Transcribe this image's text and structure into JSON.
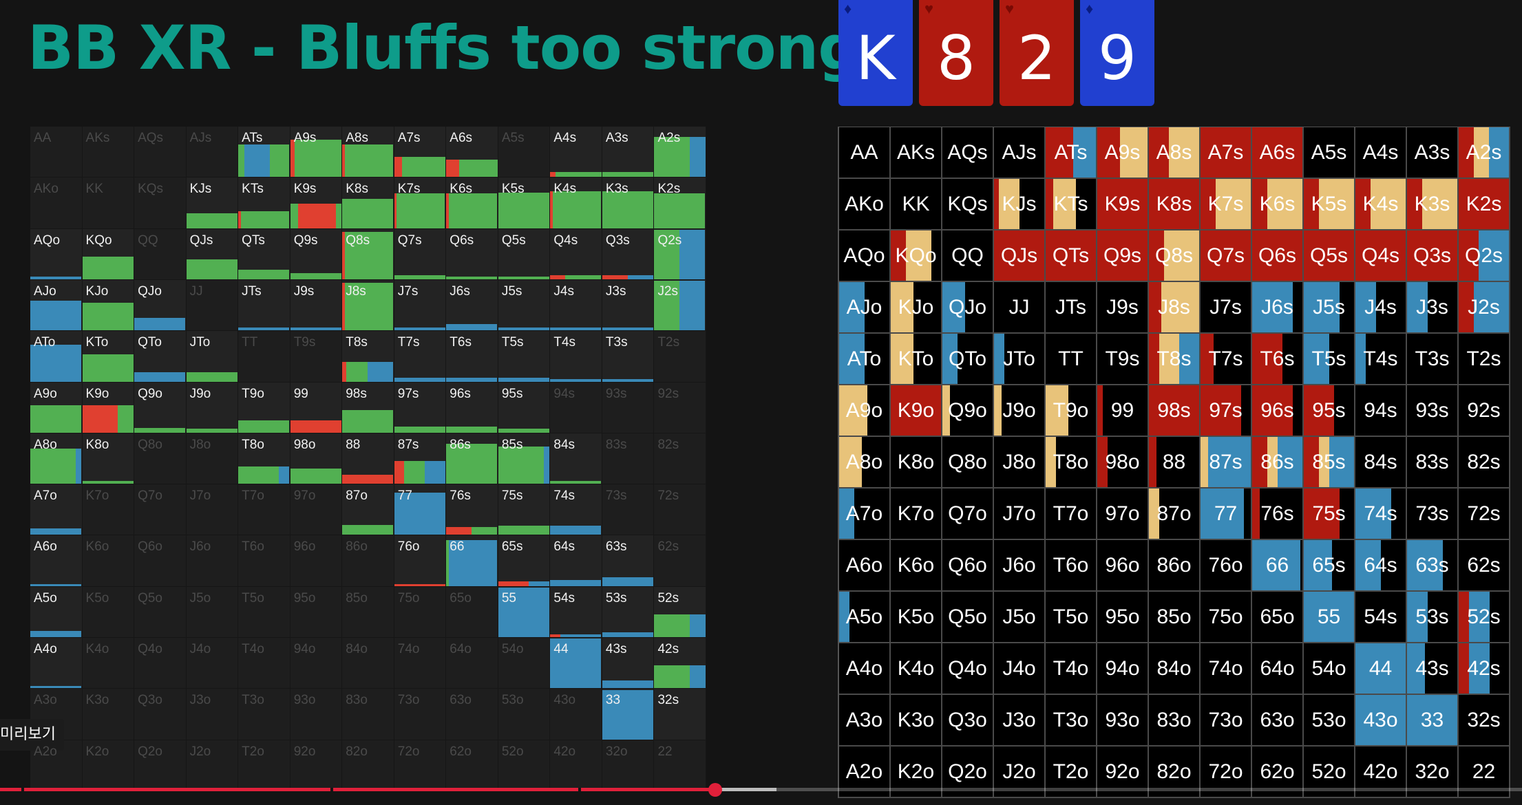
{
  "title": "BB XR - Bluffs too strong",
  "board": [
    {
      "rank": "K",
      "suit": "diamonds",
      "color": "#2140d0"
    },
    {
      "rank": "8",
      "suit": "hearts",
      "color": "#b01a10"
    },
    {
      "rank": "2",
      "suit": "hearts",
      "color": "#b01a10"
    },
    {
      "rank": "9",
      "suit": "diamonds",
      "color": "#2140d0"
    }
  ],
  "colors": {
    "green": "#52b052",
    "red": "#e04030",
    "blue": "#3a8ab8",
    "gold": "#e8c37a",
    "dark_red": "#b01a10",
    "right_blue": "#3a8ab8"
  },
  "hands": [
    [
      "AA",
      "AKs",
      "AQs",
      "AJs",
      "ATs",
      "A9s",
      "A8s",
      "A7s",
      "A6s",
      "A5s",
      "A4s",
      "A3s",
      "A2s"
    ],
    [
      "AKo",
      "KK",
      "KQs",
      "KJs",
      "KTs",
      "K9s",
      "K8s",
      "K7s",
      "K6s",
      "K5s",
      "K4s",
      "K3s",
      "K2s"
    ],
    [
      "AQo",
      "KQo",
      "QQ",
      "QJs",
      "QTs",
      "Q9s",
      "Q8s",
      "Q7s",
      "Q6s",
      "Q5s",
      "Q4s",
      "Q3s",
      "Q2s"
    ],
    [
      "AJo",
      "KJo",
      "QJo",
      "JJ",
      "JTs",
      "J9s",
      "J8s",
      "J7s",
      "J6s",
      "J5s",
      "J4s",
      "J3s",
      "J2s"
    ],
    [
      "ATo",
      "KTo",
      "QTo",
      "JTo",
      "TT",
      "T9s",
      "T8s",
      "T7s",
      "T6s",
      "T5s",
      "T4s",
      "T3s",
      "T2s"
    ],
    [
      "A9o",
      "K9o",
      "Q9o",
      "J9o",
      "T9o",
      "99",
      "98s",
      "97s",
      "96s",
      "95s",
      "94s",
      "93s",
      "92s"
    ],
    [
      "A8o",
      "K8o",
      "Q8o",
      "J8o",
      "T8o",
      "98o",
      "88",
      "87s",
      "86s",
      "85s",
      "84s",
      "83s",
      "82s"
    ],
    [
      "A7o",
      "K7o",
      "Q7o",
      "J7o",
      "T7o",
      "97o",
      "87o",
      "77",
      "76s",
      "75s",
      "74s",
      "73s",
      "72s"
    ],
    [
      "A6o",
      "K6o",
      "Q6o",
      "J6o",
      "T6o",
      "96o",
      "86o",
      "76o",
      "66",
      "65s",
      "64s",
      "63s",
      "62s"
    ],
    [
      "A5o",
      "K5o",
      "Q5o",
      "J5o",
      "T5o",
      "95o",
      "85o",
      "75o",
      "65o",
      "55",
      "54s",
      "53s",
      "52s"
    ],
    [
      "A4o",
      "K4o",
      "Q4o",
      "J4o",
      "T4o",
      "94o",
      "84o",
      "74o",
      "64o",
      "54o",
      "44",
      "43s",
      "42s"
    ],
    [
      "A3o",
      "K3o",
      "Q3o",
      "J3o",
      "T3o",
      "93o",
      "83o",
      "73o",
      "63o",
      "53o",
      "43o",
      "33",
      "32s"
    ],
    [
      "A2o",
      "K2o",
      "Q2o",
      "J2o",
      "T2o",
      "92o",
      "82o",
      "72o",
      "62o",
      "52o",
      "42o",
      "32o",
      "22"
    ]
  ],
  "left_dim": [
    "AA",
    "AKs",
    "AQs",
    "AJs",
    "A5s",
    "AKo",
    "KK",
    "KQs",
    "QQ",
    "JJ",
    "TT",
    "T9s",
    "T2s",
    "94s",
    "93s",
    "92s",
    "Q8o",
    "J8o",
    "83s",
    "82s",
    "K7o",
    "Q7o",
    "J7o",
    "T7o",
    "97o",
    "73s",
    "72s",
    "K6o",
    "Q6o",
    "J6o",
    "T6o",
    "96o",
    "86o",
    "62s",
    "K5o",
    "Q5o",
    "J5o",
    "T5o",
    "95o",
    "85o",
    "75o",
    "65o",
    "K4o",
    "Q4o",
    "J4o",
    "T4o",
    "94o",
    "84o",
    "74o",
    "64o",
    "54o",
    "A3o",
    "K3o",
    "Q3o",
    "J3o",
    "T3o",
    "93o",
    "83o",
    "73o",
    "63o",
    "53o",
    "43o",
    "A2o",
    "K2o",
    "Q2o",
    "J2o",
    "T2o",
    "92o",
    "82o",
    "72o",
    "62o",
    "52o",
    "42o",
    "32o",
    "22"
  ],
  "left_bars": {
    "ATs": [
      [
        "green",
        0.12
      ],
      [
        "blue",
        0.5
      ],
      [
        "green",
        0.38
      ]
    ],
    "A9s": [
      [
        "red",
        0.08
      ],
      [
        "green",
        0.92
      ]
    ],
    "A8s": [
      [
        "red",
        0.05
      ],
      [
        "green",
        0.95
      ]
    ],
    "A7s": [
      [
        "red",
        0.15
      ],
      [
        "green",
        0.85
      ]
    ],
    "A6s": [
      [
        "red",
        0.25
      ],
      [
        "green",
        0.75
      ]
    ],
    "A4s": [
      [
        "red",
        0.1
      ],
      [
        "green",
        0.9
      ]
    ],
    "A3s": [
      [
        "green",
        1.0
      ]
    ],
    "A2s": [
      [
        "green",
        0.7
      ],
      [
        "blue",
        0.3
      ]
    ],
    "KJs": [
      [
        "green",
        1.0
      ]
    ],
    "KTs": [
      [
        "red",
        0.05
      ],
      [
        "green",
        0.95
      ]
    ],
    "K9s": [
      [
        "green",
        0.15
      ],
      [
        "red",
        0.75
      ],
      [
        "green",
        0.1
      ]
    ],
    "K8s": [
      [
        "green",
        1.0
      ]
    ],
    "K7s": [
      [
        "red",
        0.05
      ],
      [
        "green",
        0.95
      ]
    ],
    "K6s": [
      [
        "red",
        0.05
      ],
      [
        "green",
        0.95
      ]
    ],
    "K5s": [
      [
        "green",
        1.0
      ]
    ],
    "K4s": [
      [
        "red",
        0.05
      ],
      [
        "green",
        0.95
      ]
    ],
    "K3s": [
      [
        "green",
        1.0
      ]
    ],
    "K2s": [
      [
        "green",
        1.0
      ]
    ],
    "AQo": [
      [
        "blue",
        1.0
      ]
    ],
    "KQo": [
      [
        "green",
        1.0
      ]
    ],
    "QJs": [
      [
        "green",
        1.0
      ]
    ],
    "QTs": [
      [
        "green",
        1.0
      ]
    ],
    "Q9s": [
      [
        "green",
        1.0
      ]
    ],
    "Q8s": [
      [
        "red",
        0.05
      ],
      [
        "green",
        0.95
      ]
    ],
    "Q7s": [
      [
        "green",
        1.0
      ]
    ],
    "Q6s": [
      [
        "green",
        1.0
      ]
    ],
    "Q5s": [
      [
        "green",
        1.0
      ]
    ],
    "Q4s": [
      [
        "red",
        0.3
      ],
      [
        "green",
        0.7
      ]
    ],
    "Q3s": [
      [
        "red",
        0.5
      ],
      [
        "blue",
        0.5
      ]
    ],
    "Q2s": [
      [
        "green",
        0.5
      ],
      [
        "blue",
        0.5
      ]
    ],
    "AJo": [
      [
        "blue",
        1.0
      ]
    ],
    "KJo": [
      [
        "green",
        1.0
      ]
    ],
    "QJo": [
      [
        "blue",
        1.0
      ]
    ],
    "JTs": [
      [
        "blue",
        1.0
      ]
    ],
    "J9s": [
      [
        "blue",
        1.0
      ]
    ],
    "J8s": [
      [
        "red",
        0.05
      ],
      [
        "green",
        0.95
      ]
    ],
    "J7s": [
      [
        "blue",
        1.0
      ]
    ],
    "J6s": [
      [
        "blue",
        1.0
      ]
    ],
    "J5s": [
      [
        "blue",
        1.0
      ]
    ],
    "J4s": [
      [
        "blue",
        1.0
      ]
    ],
    "J3s": [
      [
        "blue",
        1.0
      ]
    ],
    "J2s": [
      [
        "green",
        0.5
      ],
      [
        "blue",
        0.5
      ]
    ],
    "ATo": [
      [
        "blue",
        1.0
      ]
    ],
    "KTo": [
      [
        "green",
        1.0
      ]
    ],
    "QTo": [
      [
        "blue",
        1.0
      ]
    ],
    "JTo": [
      [
        "green",
        1.0
      ]
    ],
    "T8s": [
      [
        "red",
        0.08
      ],
      [
        "green",
        0.42
      ],
      [
        "blue",
        0.5
      ]
    ],
    "T7s": [
      [
        "blue",
        1.0
      ]
    ],
    "T6s": [
      [
        "blue",
        1.0
      ]
    ],
    "T5s": [
      [
        "blue",
        1.0
      ]
    ],
    "T4s": [
      [
        "blue",
        1.0
      ]
    ],
    "T3s": [
      [
        "blue",
        1.0
      ]
    ],
    "A9o": [
      [
        "green",
        1.0
      ]
    ],
    "K9o": [
      [
        "red",
        0.7
      ],
      [
        "green",
        0.3
      ]
    ],
    "Q9o": [
      [
        "green",
        1.0
      ]
    ],
    "J9o": [
      [
        "green",
        1.0
      ]
    ],
    "T9o": [
      [
        "green",
        1.0
      ]
    ],
    "99": [
      [
        "red",
        1.0
      ]
    ],
    "98s": [
      [
        "green",
        1.0
      ]
    ],
    "97s": [
      [
        "green",
        1.0
      ]
    ],
    "96s": [
      [
        "green",
        1.0
      ]
    ],
    "95s": [
      [
        "green",
        1.0
      ]
    ],
    "A8o": [
      [
        "green",
        0.9
      ],
      [
        "blue",
        0.1
      ]
    ],
    "K8o": [
      [
        "green",
        1.0
      ]
    ],
    "T8o": [
      [
        "green",
        0.8
      ],
      [
        "blue",
        0.2
      ]
    ],
    "98o": [
      [
        "green",
        1.0
      ]
    ],
    "88": [
      [
        "red",
        1.0
      ]
    ],
    "87s": [
      [
        "red",
        0.2
      ],
      [
        "green",
        0.4
      ],
      [
        "blue",
        0.4
      ]
    ],
    "86s": [
      [
        "green",
        1.0
      ]
    ],
    "85s": [
      [
        "green",
        0.9
      ],
      [
        "blue",
        0.1
      ]
    ],
    "84s": [
      [
        "green",
        1.0
      ]
    ],
    "A7o": [
      [
        "blue",
        1.0
      ]
    ],
    "87o": [
      [
        "green",
        1.0
      ]
    ],
    "77": [
      [
        "blue",
        1.0
      ]
    ],
    "76s": [
      [
        "red",
        0.5
      ],
      [
        "green",
        0.5
      ]
    ],
    "75s": [
      [
        "green",
        1.0
      ]
    ],
    "74s": [
      [
        "blue",
        1.0
      ]
    ],
    "A6o": [
      [
        "blue",
        1.0
      ]
    ],
    "76o": [
      [
        "red",
        1.0
      ]
    ],
    "66": [
      [
        "green",
        0.05
      ],
      [
        "blue",
        0.95
      ]
    ],
    "65s": [
      [
        "red",
        0.6
      ],
      [
        "blue",
        0.4
      ]
    ],
    "64s": [
      [
        "blue",
        1.0
      ]
    ],
    "63s": [
      [
        "blue",
        1.0
      ]
    ],
    "A5o": [
      [
        "blue",
        1.0
      ]
    ],
    "55": [
      [
        "blue",
        1.0
      ]
    ],
    "54s": [
      [
        "red",
        0.2
      ],
      [
        "blue",
        0.8
      ]
    ],
    "53s": [
      [
        "blue",
        1.0
      ]
    ],
    "52s": [
      [
        "green",
        0.7
      ],
      [
        "blue",
        0.3
      ]
    ],
    "A4o": [
      [
        "blue",
        1.0
      ]
    ],
    "44": [
      [
        "blue",
        1.0
      ]
    ],
    "43s": [
      [
        "blue",
        1.0
      ]
    ],
    "42s": [
      [
        "green",
        0.7
      ],
      [
        "blue",
        0.3
      ]
    ],
    "33": [
      [
        "blue",
        1.0
      ]
    ]
  },
  "left_freq": {
    "ATs": 0.65,
    "A9s": 0.75,
    "A8s": 0.65,
    "A7s": 0.4,
    "A6s": 0.35,
    "A4s": 0.1,
    "A3s": 0.1,
    "A2s": 0.8,
    "KJs": 0.3,
    "KTs": 0.35,
    "K9s": 0.5,
    "K8s": 0.6,
    "K7s": 0.7,
    "K6s": 0.7,
    "K5s": 0.72,
    "K4s": 0.75,
    "K3s": 0.75,
    "K2s": 0.7,
    "AQo": 0.05,
    "KQo": 0.45,
    "QJs": 0.4,
    "QTs": 0.2,
    "Q9s": 0.12,
    "Q8s": 0.95,
    "Q7s": 0.08,
    "Q6s": 0.05,
    "Q5s": 0.05,
    "Q4s": 0.08,
    "Q3s": 0.08,
    "Q2s": 1.0,
    "AJo": 0.6,
    "KJo": 0.55,
    "QJo": 0.25,
    "JTs": 0.05,
    "J9s": 0.05,
    "J8s": 0.95,
    "J7s": 0.06,
    "J6s": 0.12,
    "J5s": 0.06,
    "J4s": 0.06,
    "J3s": 0.06,
    "J2s": 1.0,
    "ATo": 0.75,
    "KTo": 0.55,
    "QTo": 0.2,
    "JTo": 0.2,
    "T8s": 0.4,
    "T7s": 0.08,
    "T6s": 0.08,
    "T5s": 0.08,
    "T4s": 0.06,
    "T3s": 0.06,
    "A9o": 0.55,
    "K9o": 0.55,
    "Q9o": 0.1,
    "J9o": 0.08,
    "T9o": 0.25,
    "99": 0.25,
    "98s": 0.45,
    "97s": 0.12,
    "96s": 0.12,
    "95s": 0.08,
    "A8o": 0.7,
    "K8o": 0.05,
    "T8o": 0.35,
    "98o": 0.3,
    "88": 0.18,
    "87s": 0.45,
    "86s": 0.8,
    "85s": 0.75,
    "84s": 0.05,
    "A7o": 0.12,
    "87o": 0.2,
    "77": 0.85,
    "76s": 0.15,
    "75s": 0.18,
    "74s": 0.18,
    "A6o": 0.04,
    "76o": 0.04,
    "66": 0.92,
    "65s": 0.1,
    "64s": 0.12,
    "63s": 0.18,
    "A5o": 0.12,
    "55": 1.0,
    "54s": 0.05,
    "53s": 0.1,
    "52s": 0.45,
    "A4o": 0.03,
    "44": 1.0,
    "43s": 0.15,
    "42s": 0.45,
    "33": 1.0
  },
  "right_cells": {
    "ATs": [
      [
        "dark_red",
        0.55
      ],
      [
        "right_blue",
        0.45
      ]
    ],
    "A9s": [
      [
        "dark_red",
        0.45
      ],
      [
        "gold",
        0.55
      ]
    ],
    "A8s": [
      [
        "dark_red",
        0.4
      ],
      [
        "gold",
        0.6
      ]
    ],
    "A7s": [
      [
        "dark_red",
        1.0
      ]
    ],
    "A6s": [
      [
        "dark_red",
        1.0
      ]
    ],
    "A2s": [
      [
        "dark_red",
        0.3
      ],
      [
        "gold",
        0.3
      ],
      [
        "right_blue",
        0.4
      ]
    ],
    "KJs": [
      [
        "dark_red",
        0.1
      ],
      [
        "gold",
        0.4
      ]
    ],
    "KTs": [
      [
        "dark_red",
        0.15
      ],
      [
        "gold",
        0.45
      ]
    ],
    "K9s": [
      [
        "dark_red",
        1.0
      ]
    ],
    "K8s": [
      [
        "dark_red",
        1.0
      ]
    ],
    "K7s": [
      [
        "dark_red",
        0.3
      ],
      [
        "gold",
        0.7
      ]
    ],
    "K6s": [
      [
        "dark_red",
        0.3
      ],
      [
        "gold",
        0.7
      ]
    ],
    "K5s": [
      [
        "dark_red",
        0.3
      ],
      [
        "gold",
        0.7
      ]
    ],
    "K4s": [
      [
        "dark_red",
        0.3
      ],
      [
        "gold",
        0.7
      ]
    ],
    "K3s": [
      [
        "dark_red",
        0.3
      ],
      [
        "gold",
        0.7
      ]
    ],
    "K2s": [
      [
        "dark_red",
        1.0
      ]
    ],
    "KQo": [
      [
        "dark_red",
        0.3
      ],
      [
        "gold",
        0.5
      ]
    ],
    "QJs": [
      [
        "dark_red",
        1.0
      ]
    ],
    "QTs": [
      [
        "dark_red",
        1.0
      ]
    ],
    "Q9s": [
      [
        "dark_red",
        1.0
      ]
    ],
    "Q8s": [
      [
        "dark_red",
        0.3
      ],
      [
        "gold",
        0.7
      ]
    ],
    "Q7s": [
      [
        "dark_red",
        1.0
      ]
    ],
    "Q6s": [
      [
        "dark_red",
        1.0
      ]
    ],
    "Q5s": [
      [
        "dark_red",
        1.0
      ]
    ],
    "Q4s": [
      [
        "dark_red",
        1.0
      ]
    ],
    "Q3s": [
      [
        "dark_red",
        1.0
      ]
    ],
    "Q2s": [
      [
        "dark_red",
        0.4
      ],
      [
        "right_blue",
        0.6
      ]
    ],
    "AJo": [
      [
        "right_blue",
        0.5
      ]
    ],
    "KJo": [
      [
        "gold",
        0.45
      ]
    ],
    "QJo": [
      [
        "right_blue",
        0.45
      ]
    ],
    "J8s": [
      [
        "dark_red",
        0.25
      ],
      [
        "gold",
        0.75
      ]
    ],
    "J6s": [
      [
        "right_blue",
        0.8
      ]
    ],
    "J5s": [
      [
        "right_blue",
        0.7
      ]
    ],
    "J4s": [
      [
        "right_blue",
        0.4
      ]
    ],
    "J3s": [
      [
        "right_blue",
        0.4
      ]
    ],
    "J2s": [
      [
        "dark_red",
        0.3
      ],
      [
        "right_blue",
        0.7
      ]
    ],
    "ATo": [
      [
        "right_blue",
        0.5
      ]
    ],
    "KTo": [
      [
        "gold",
        0.45
      ]
    ],
    "QTo": [
      [
        "right_blue",
        0.3
      ]
    ],
    "JTo": [
      [
        "right_blue",
        0.2
      ]
    ],
    "T8s": [
      [
        "dark_red",
        0.2
      ],
      [
        "gold",
        0.4
      ],
      [
        "right_blue",
        0.4
      ]
    ],
    "T7s": [
      [
        "dark_red",
        0.25
      ]
    ],
    "T6s": [
      [
        "dark_red",
        0.6
      ]
    ],
    "T5s": [
      [
        "right_blue",
        0.5
      ]
    ],
    "T4s": [
      [
        "right_blue",
        0.2
      ]
    ],
    "A9o": [
      [
        "gold",
        0.55
      ]
    ],
    "K9o": [
      [
        "dark_red",
        1.0
      ]
    ],
    "Q9o": [
      [
        "gold",
        0.15
      ]
    ],
    "J9o": [
      [
        "gold",
        0.15
      ]
    ],
    "T9o": [
      [
        "gold",
        0.45
      ]
    ],
    "99": [
      [
        "dark_red",
        0.1
      ]
    ],
    "98s": [
      [
        "dark_red",
        1.0
      ]
    ],
    "97s": [
      [
        "dark_red",
        0.8
      ]
    ],
    "96s": [
      [
        "dark_red",
        0.8
      ]
    ],
    "95s": [
      [
        "dark_red",
        0.6
      ]
    ],
    "A8o": [
      [
        "gold",
        0.45
      ]
    ],
    "T8o": [
      [
        "gold",
        0.2
      ]
    ],
    "98o": [
      [
        "dark_red",
        0.2
      ]
    ],
    "88": [
      [
        "dark_red",
        0.15
      ]
    ],
    "87s": [
      [
        "gold",
        0.15
      ],
      [
        "right_blue",
        0.85
      ]
    ],
    "86s": [
      [
        "dark_red",
        0.3
      ],
      [
        "gold",
        0.2
      ],
      [
        "right_blue",
        0.5
      ]
    ],
    "85s": [
      [
        "dark_red",
        0.3
      ],
      [
        "gold",
        0.2
      ],
      [
        "right_blue",
        0.5
      ]
    ],
    "A7o": [
      [
        "right_blue",
        0.3
      ]
    ],
    "87o": [
      [
        "gold",
        0.2
      ]
    ],
    "77": [
      [
        "right_blue",
        0.85
      ]
    ],
    "76s": [
      [
        "dark_red",
        0.15
      ]
    ],
    "75s": [
      [
        "dark_red",
        0.7
      ]
    ],
    "74s": [
      [
        "right_blue",
        0.7
      ]
    ],
    "66": [
      [
        "right_blue",
        0.95
      ]
    ],
    "65s": [
      [
        "right_blue",
        0.55
      ]
    ],
    "64s": [
      [
        "right_blue",
        0.5
      ]
    ],
    "63s": [
      [
        "right_blue",
        0.7
      ]
    ],
    "A5o": [
      [
        "right_blue",
        0.2
      ]
    ],
    "55": [
      [
        "right_blue",
        1.0
      ]
    ],
    "53s": [
      [
        "right_blue",
        0.4
      ]
    ],
    "52s": [
      [
        "dark_red",
        0.2
      ],
      [
        "right_blue",
        0.4
      ]
    ],
    "44": [
      [
        "right_blue",
        1.0
      ]
    ],
    "43s": [
      [
        "right_blue",
        0.35
      ]
    ],
    "42s": [
      [
        "dark_red",
        0.2
      ],
      [
        "right_blue",
        0.4
      ]
    ],
    "43o": [
      [
        "right_blue",
        1.0
      ]
    ],
    "33": [
      [
        "right_blue",
        1.0
      ]
    ]
  },
  "player": {
    "tooltip": "미리보기",
    "played_fraction": 0.47,
    "buffered_fraction": 0.51,
    "chapters": [
      0.014,
      0.217,
      0.38
    ]
  }
}
